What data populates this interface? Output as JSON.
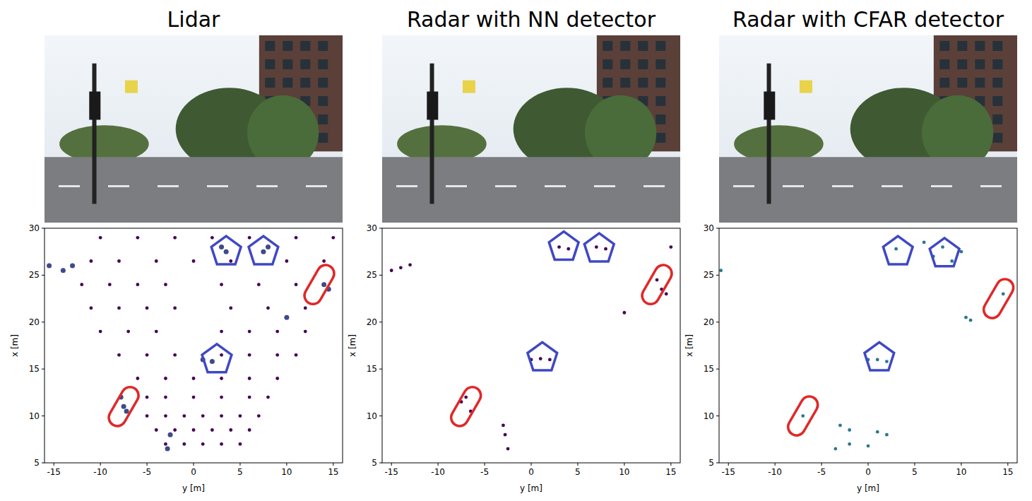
{
  "chart_data": [
    {
      "type": "scatter",
      "title": "Lidar",
      "xlabel": "y [m]",
      "ylabel": "x [m]",
      "xlim": [
        -16,
        16
      ],
      "ylim": [
        5,
        30
      ],
      "xticks": [
        -15,
        -10,
        -5,
        0,
        5,
        10,
        15
      ],
      "yticks": [
        5,
        10,
        15,
        20,
        25,
        30
      ],
      "series": [
        {
          "color": "#440154",
          "marker": "dot",
          "x": [
            -3,
            -1,
            1,
            3,
            5,
            -4,
            -2,
            0,
            2,
            4,
            6,
            -5,
            -3,
            -1,
            1,
            3,
            5,
            7,
            -5,
            -3,
            0,
            3,
            6,
            8,
            -6,
            -3,
            0,
            3,
            6,
            9,
            -8,
            -5,
            -2,
            3,
            6,
            9,
            11,
            -10,
            -7,
            -4,
            3,
            6,
            9,
            12,
            -11,
            -8,
            -5,
            -2,
            4,
            8,
            12,
            -12,
            -9,
            -6,
            -3,
            3,
            7,
            11,
            -11,
            -8,
            -4,
            0,
            4,
            10,
            14,
            -10,
            -6,
            -2,
            2,
            6,
            11,
            15
          ],
          "values": [
            7,
            7,
            7,
            7,
            7,
            8.5,
            8.5,
            8.5,
            8.5,
            8.5,
            8.5,
            10,
            10,
            10,
            10,
            10,
            10,
            10,
            12,
            12,
            12,
            12,
            12,
            12,
            14,
            14,
            14,
            14,
            14,
            14,
            16.5,
            16.5,
            16.5,
            16.5,
            16.5,
            16.5,
            16.5,
            19,
            19,
            19,
            19,
            19,
            19,
            19,
            21.5,
            21.5,
            21.5,
            21.5,
            21.5,
            21.5,
            21.5,
            24,
            24,
            24,
            24,
            24,
            24,
            24,
            26.5,
            26.5,
            26.5,
            26.5,
            26.5,
            26.5,
            26.5,
            29,
            29,
            29,
            29,
            29,
            29,
            29
          ]
        },
        {
          "color": "#3e4a89",
          "marker": "dot",
          "x": [
            -7.5,
            -7.2,
            -7.8,
            3.5,
            3,
            7.5,
            8,
            1,
            2,
            14,
            14.5,
            -14,
            -13,
            -15.5,
            -2.5,
            -2.8,
            10
          ],
          "values": [
            11,
            10.5,
            12,
            27.5,
            28,
            27.5,
            28,
            16,
            15.8,
            24,
            23.5,
            25.5,
            26,
            26,
            8,
            6.5,
            20.5
          ]
        },
        {
          "color": "#3f48c4",
          "marker": "pentagon",
          "x": [
            3.5,
            7.5,
            2.5
          ],
          "values": [
            27.5,
            27.5,
            16
          ]
        },
        {
          "color": "#e02828",
          "marker": "capsule",
          "x": [
            -7.5,
            13.5
          ],
          "values": [
            11,
            24
          ]
        }
      ]
    },
    {
      "type": "scatter",
      "title": "Radar with NN detector",
      "xlabel": "y [m]",
      "ylabel": "x [m]",
      "xlim": [
        -16,
        16
      ],
      "ylim": [
        5,
        30
      ],
      "xticks": [
        -15,
        -10,
        -5,
        0,
        5,
        10,
        15
      ],
      "yticks": [
        5,
        10,
        15,
        20,
        25,
        30
      ],
      "series": [
        {
          "color": "#440154",
          "marker": "dot",
          "x": [
            -14,
            -15,
            -13,
            3,
            4,
            7,
            8,
            14,
            13.5,
            14.5,
            15,
            10,
            1,
            0,
            2,
            -7,
            -6.5,
            -7.5,
            -3,
            -2.8,
            -2.5
          ],
          "values": [
            25.8,
            25.5,
            26.1,
            28,
            27.8,
            28,
            27.8,
            23.5,
            24.5,
            23,
            28,
            21,
            16.1,
            16,
            16,
            12,
            10.5,
            11.5,
            9,
            8,
            6.5
          ]
        },
        {
          "color": "#3f48c4",
          "marker": "pentagon",
          "x": [
            3.5,
            7.3,
            1.2
          ],
          "values": [
            28,
            27.8,
            16.2
          ]
        },
        {
          "color": "#e02828",
          "marker": "capsule",
          "x": [
            -7,
            13.5
          ],
          "values": [
            11,
            24
          ]
        }
      ]
    },
    {
      "type": "scatter",
      "title": "Radar with CFAR detector",
      "xlabel": "y [m]",
      "ylabel": "x [m]",
      "xlim": [
        -16,
        16
      ],
      "ylim": [
        5,
        30
      ],
      "xticks": [
        -15,
        -10,
        -5,
        0,
        5,
        10,
        15
      ],
      "yticks": [
        5,
        10,
        15,
        20,
        25,
        30
      ],
      "series": [
        {
          "color": "#2a788e",
          "marker": "dot",
          "x": [
            3,
            6,
            8,
            10,
            7,
            9,
            1,
            0,
            2,
            14.5,
            -7,
            10.5,
            11,
            -3,
            -2,
            1,
            -3.5,
            -2,
            0,
            2,
            -15.8
          ],
          "values": [
            27.8,
            28.5,
            28,
            27.5,
            27,
            26.5,
            16,
            16,
            15.8,
            23,
            10,
            20.5,
            20.2,
            9,
            8.5,
            8.3,
            6.5,
            7,
            6.8,
            8,
            25.5
          ]
        },
        {
          "color": "#3f48c4",
          "marker": "pentagon",
          "x": [
            3.2,
            8.2,
            1.2
          ],
          "values": [
            27.5,
            27.3,
            16.2
          ]
        },
        {
          "color": "#e02828",
          "marker": "capsule",
          "x": [
            -7,
            14
          ],
          "values": [
            10,
            22.5
          ]
        }
      ]
    }
  ]
}
